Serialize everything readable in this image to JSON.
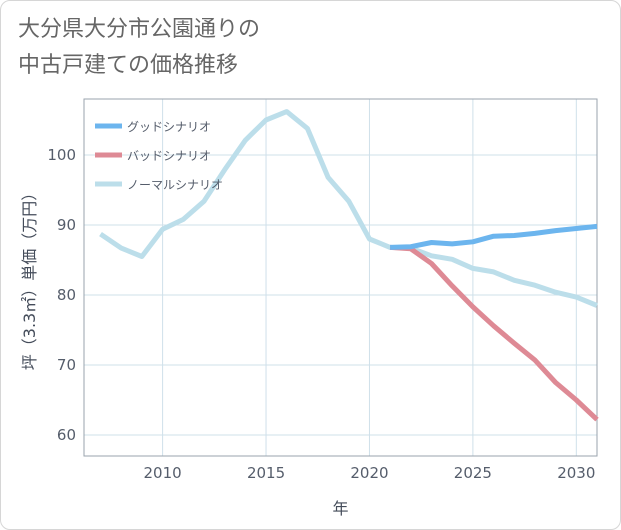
{
  "title": "大分県大分市公園通りの\n中古戸建ての価格推移",
  "chart_data": {
    "type": "line",
    "xlabel": "年",
    "ylabel": "坪（3.3㎡）単価（万円）",
    "xlim": [
      2006.2,
      2031
    ],
    "ylim": [
      57,
      108
    ],
    "xticks": [
      2010,
      2015,
      2020,
      2025,
      2030
    ],
    "yticks": [
      60,
      70,
      80,
      90,
      100
    ],
    "grid": true,
    "legend_position": "top-left",
    "series": [
      {
        "name": "グッドシナリオ",
        "color": "#6cb5ee",
        "x": [
          2021,
          2022,
          2023,
          2024,
          2025,
          2026,
          2027,
          2028,
          2029,
          2030,
          2031
        ],
        "y": [
          86.8,
          86.9,
          87.5,
          87.3,
          87.6,
          88.4,
          88.5,
          88.8,
          89.2,
          89.5,
          89.8
        ]
      },
      {
        "name": "バッドシナリオ",
        "color": "#de8a95",
        "x": [
          2021,
          2022,
          2023,
          2024,
          2025,
          2026,
          2027,
          2028,
          2029,
          2030,
          2031
        ],
        "y": [
          86.8,
          86.6,
          84.5,
          81.3,
          78.3,
          75.6,
          73.1,
          70.7,
          67.5,
          65.0,
          62.2
        ]
      },
      {
        "name": "ノーマルシナリオ",
        "color": "#bcdeea",
        "x": [
          2007,
          2008,
          2009,
          2010,
          2011,
          2012,
          2013,
          2014,
          2015,
          2016,
          2017,
          2018,
          2019,
          2020,
          2021,
          2022,
          2023,
          2024,
          2025,
          2026,
          2027,
          2028,
          2029,
          2030,
          2031
        ],
        "y": [
          88.7,
          86.7,
          85.5,
          89.4,
          90.8,
          93.4,
          97.9,
          102.1,
          105.0,
          106.2,
          103.8,
          96.8,
          93.4,
          88.0,
          86.8,
          86.7,
          85.6,
          85.1,
          83.8,
          83.3,
          82.1,
          81.4,
          80.4,
          79.7,
          78.5
        ]
      }
    ]
  }
}
